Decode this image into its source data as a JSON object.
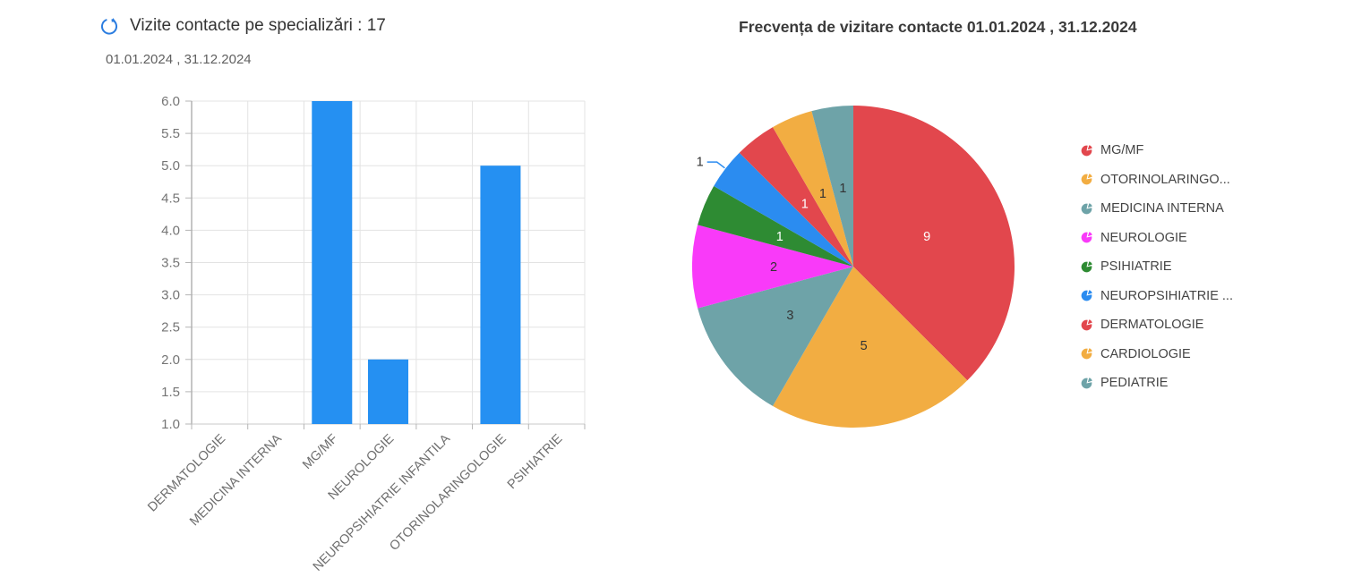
{
  "chart_data": [
    {
      "type": "bar",
      "title": "Vizite contacte pe specializări : 17",
      "subtitle": "01.01.2024 , 31.12.2024",
      "total": 17,
      "categories": [
        "DERMATOLOGIE",
        "MEDICINA INTERNA",
        "MG/MF",
        "NEUROLOGIE",
        "NEUROPSIHIATRIE INFANTILA",
        "OTORINOLARINGOLOGIE",
        "PSIHIATRIE"
      ],
      "values": [
        1,
        1,
        6,
        2,
        1,
        5,
        1
      ],
      "ylim": [
        1.0,
        6.0
      ],
      "ytick_step": 0.5,
      "grid": true,
      "bar_color": "#2590f2",
      "axis_tick_color": "#757575",
      "category_label_color": "#6e6e6e"
    },
    {
      "type": "pie",
      "title": "Frecvența de vizitare contacte 01.01.2024 , 31.12.2024",
      "slices": [
        {
          "label": "MG/MF",
          "value": 9,
          "color": "#e2474d",
          "value_label_color": "#ffffff",
          "label_outside": false
        },
        {
          "label": "OTORINOLARINGOLOGIE",
          "value": 5,
          "color": "#f2ad42",
          "value_label_color": "#333333",
          "label_outside": false
        },
        {
          "label": "MEDICINA INTERNA",
          "value": 3,
          "color": "#6ea3a8",
          "value_label_color": "#333333",
          "label_outside": false
        },
        {
          "label": "NEUROLOGIE",
          "value": 2,
          "color": "#f93af9",
          "value_label_color": "#333333",
          "label_outside": false
        },
        {
          "label": "PSIHIATRIE",
          "value": 1,
          "color": "#2e8b33",
          "value_label_color": "#ffffff",
          "label_outside": false
        },
        {
          "label": "NEUROPSIHIATRIE INFANTILA",
          "value": 1,
          "color": "#2b8cf0",
          "value_label_color": "#333333",
          "label_outside": true
        },
        {
          "label": "DERMATOLOGIE",
          "value": 1,
          "color": "#e2474d",
          "value_label_color": "#ffffff",
          "label_outside": false
        },
        {
          "label": "CARDIOLOGIE",
          "value": 1,
          "color": "#f2ad42",
          "value_label_color": "#333333",
          "label_outside": false
        },
        {
          "label": "PEDIATRIE",
          "value": 1,
          "color": "#6ea3a8",
          "value_label_color": "#333333",
          "label_outside": false
        }
      ],
      "legend_position": "right",
      "legend": [
        {
          "label": "MG/MF",
          "color": "#e2474d"
        },
        {
          "label": "OTORINOLARINGO...",
          "color": "#f2ad42"
        },
        {
          "label": "MEDICINA INTERNA",
          "color": "#6ea3a8"
        },
        {
          "label": "NEUROLOGIE",
          "color": "#f93af9"
        },
        {
          "label": "PSIHIATRIE",
          "color": "#2e8b33"
        },
        {
          "label": "NEUROPSIHIATRIE ...",
          "color": "#2b8cf0"
        },
        {
          "label": "DERMATOLOGIE",
          "color": "#e2474d"
        },
        {
          "label": "CARDIOLOGIE",
          "color": "#f2ad42"
        },
        {
          "label": "PEDIATRIE",
          "color": "#6ea3a8"
        }
      ]
    }
  ],
  "icons": {
    "refresh_color": "#2b7de0"
  }
}
